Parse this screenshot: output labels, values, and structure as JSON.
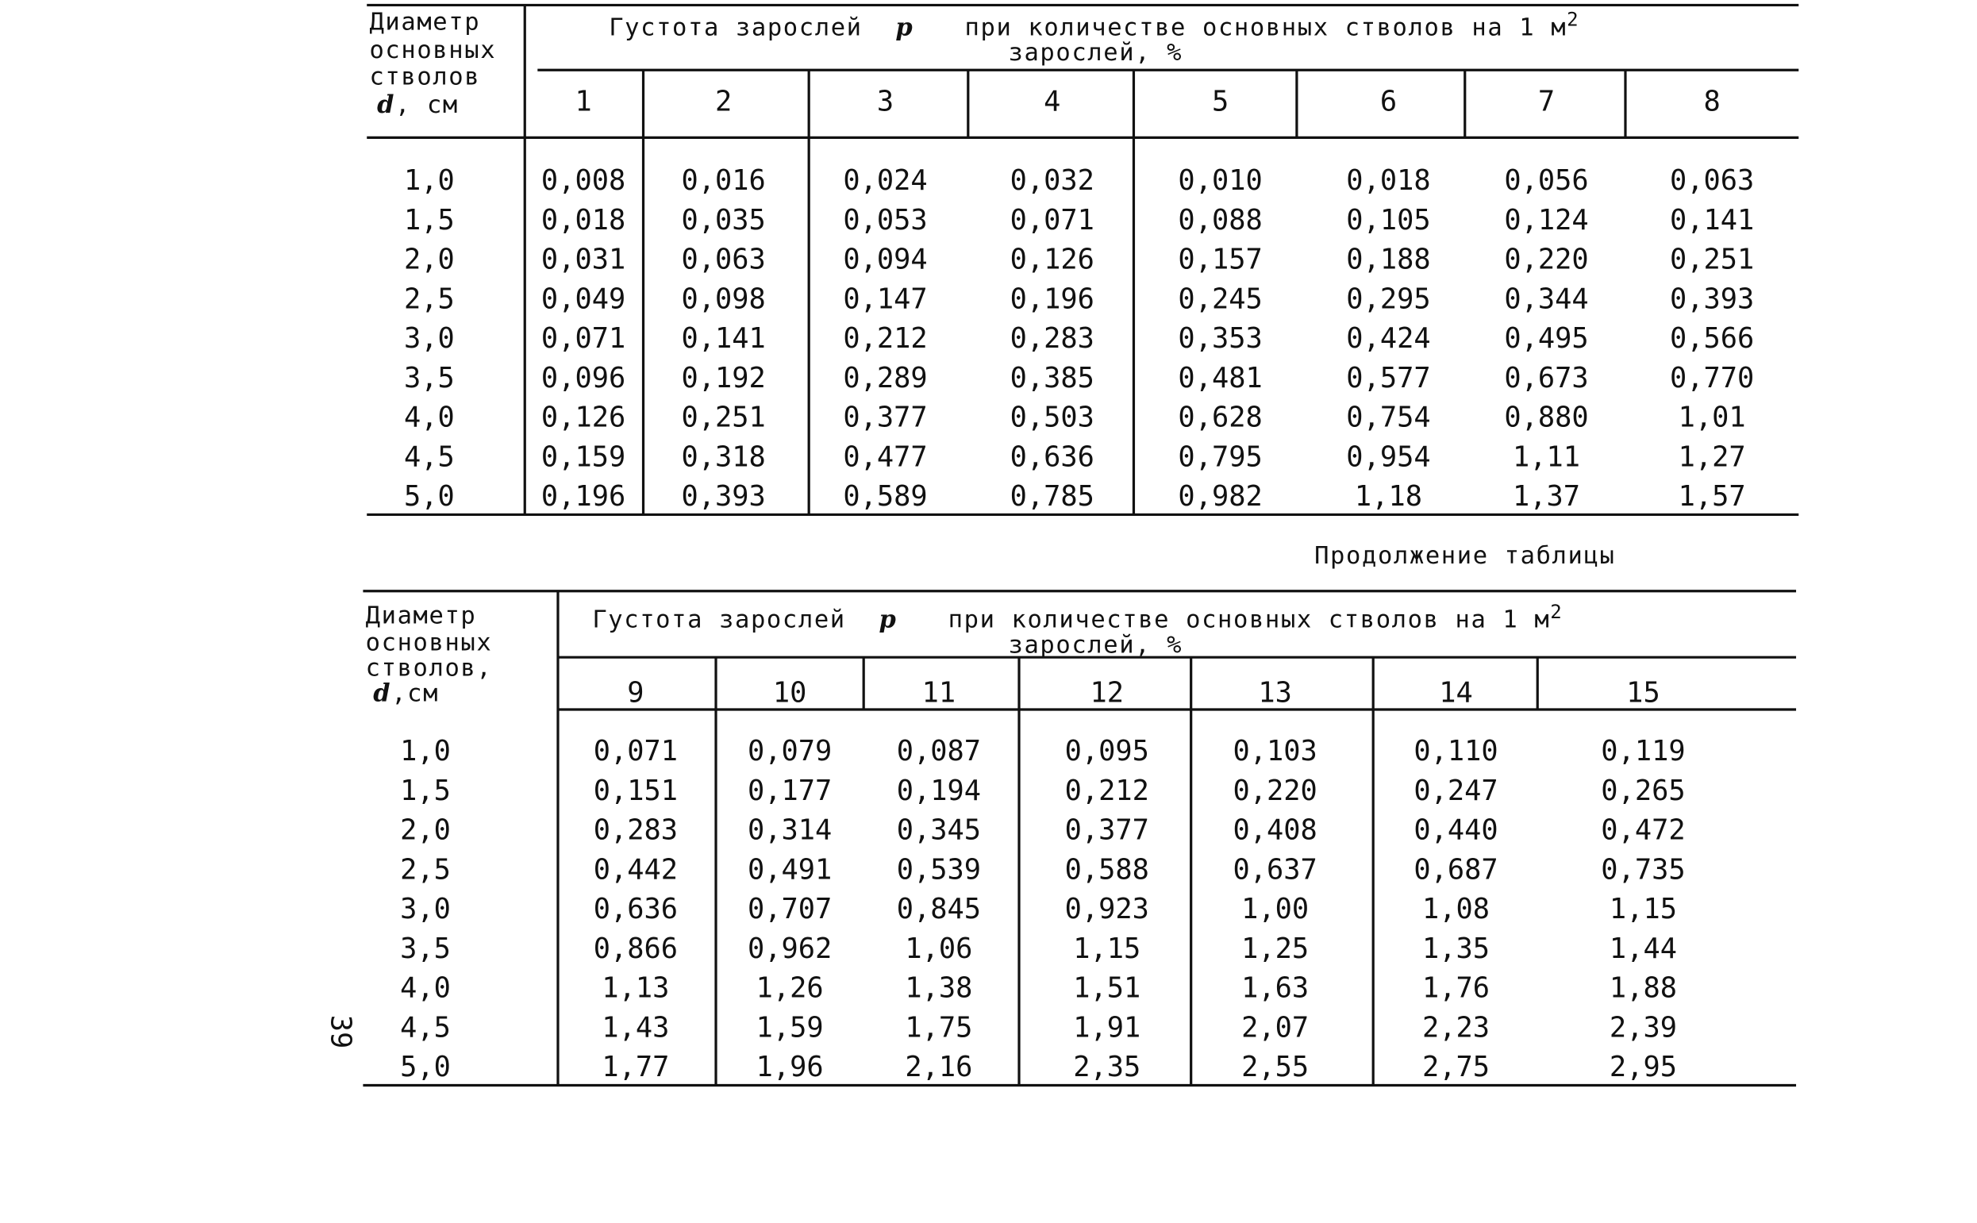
{
  "table1": {
    "stub_header": [
      "Диаметр",
      "основных",
      "стволов",
      "d",
      ", см"
    ],
    "group_header": [
      "Густота зарослей",
      "p",
      "при количестве основных стволов на 1 м",
      "2",
      "зарослей, %"
    ],
    "columns": [
      "1",
      "2",
      "3",
      "4",
      "5",
      "6",
      "7",
      "8"
    ],
    "rows": [
      [
        "1,0",
        "0,008",
        "0,016",
        "0,024",
        "0,032",
        "0,010",
        "0,018",
        "0,056",
        "0,063"
      ],
      [
        "1,5",
        "0,018",
        "0,035",
        "0,053",
        "0,071",
        "0,088",
        "0,105",
        "0,124",
        "0,141"
      ],
      [
        "2,0",
        "0,031",
        "0,063",
        "0,094",
        "0,126",
        "0,157",
        "0,188",
        "0,220",
        "0,251"
      ],
      [
        "2,5",
        "0,049",
        "0,098",
        "0,147",
        "0,196",
        "0,245",
        "0,295",
        "0,344",
        "0,393"
      ],
      [
        "3,0",
        "0,071",
        "0,141",
        "0,212",
        "0,283",
        "0,353",
        "0,424",
        "0,495",
        "0,566"
      ],
      [
        "3,5",
        "0,096",
        "0,192",
        "0,289",
        "0,385",
        "0,481",
        "0,577",
        "0,673",
        "0,770"
      ],
      [
        "4,0",
        "0,126",
        "0,251",
        "0,377",
        "0,503",
        "0,628",
        "0,754",
        "0,880",
        "1,01"
      ],
      [
        "4,5",
        "0,159",
        "0,318",
        "0,477",
        "0,636",
        "0,795",
        "0,954",
        "1,11",
        "1,27"
      ],
      [
        "5,0",
        "0,196",
        "0,393",
        "0,589",
        "0,785",
        "0,982",
        "1,18",
        "1,37",
        "1,57"
      ]
    ]
  },
  "continuation": "Продолжение таблицы",
  "table2": {
    "stub_header": [
      "Диаметр",
      "основных",
      "стволов,",
      "d",
      ",см"
    ],
    "group_header": [
      "Густота зарослей",
      "p",
      "при количестве основных стволов на 1 м",
      "2",
      "зарослей, %"
    ],
    "columns": [
      "9",
      "10",
      "11",
      "12",
      "13",
      "14",
      "15"
    ],
    "rows": [
      [
        "1,0",
        "0,071",
        "0,079",
        "0,087",
        "0,095",
        "0,103",
        "0,110",
        "0,119"
      ],
      [
        "1,5",
        "0,151",
        "0,177",
        "0,194",
        "0,212",
        "0,220",
        "0,247",
        "0,265"
      ],
      [
        "2,0",
        "0,283",
        "0,314",
        "0,345",
        "0,377",
        "0,408",
        "0,440",
        "0,472"
      ],
      [
        "2,5",
        "0,442",
        "0,491",
        "0,539",
        "0,588",
        "0,637",
        "0,687",
        "0,735"
      ],
      [
        "3,0",
        "0,636",
        "0,707",
        "0,845",
        "0,923",
        "1,00",
        "1,08",
        "1,15"
      ],
      [
        "3,5",
        "0,866",
        "0,962",
        "1,06",
        "1,15",
        "1,25",
        "1,35",
        "1,44"
      ],
      [
        "4,0",
        "1,13",
        "1,26",
        "1,38",
        "1,51",
        "1,63",
        "1,76",
        "1,88"
      ],
      [
        "4,5",
        "1,43",
        "1,59",
        "1,75",
        "1,91",
        "2,07",
        "2,23",
        "2,39"
      ],
      [
        "5,0",
        "1,77",
        "1,96",
        "2,16",
        "2,35",
        "2,55",
        "2,75",
        "2,95"
      ]
    ]
  },
  "page_number": "39"
}
